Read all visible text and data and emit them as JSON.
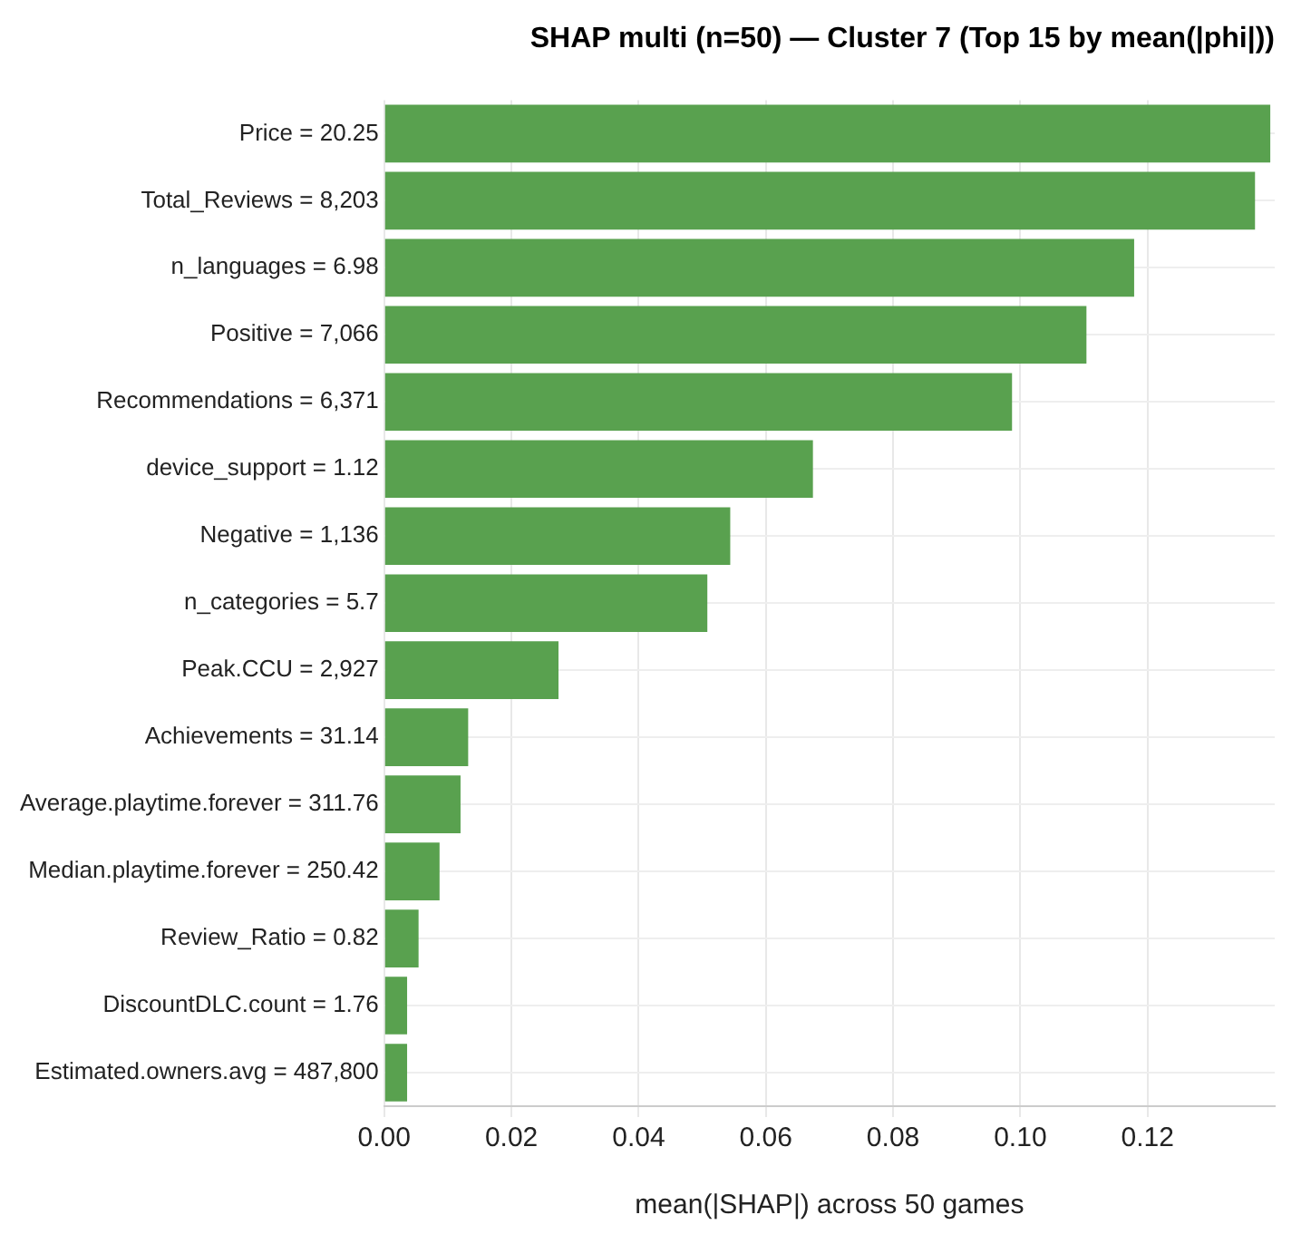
{
  "chart_data": {
    "type": "bar",
    "orientation": "horizontal",
    "title": "SHAP multi (n=50) — Cluster 7 (Top 15 by mean(|phi|))",
    "xlabel": "mean(|SHAP|) across 50 games",
    "categories": [
      "Price = 20.25",
      "Total_Reviews = 8,203",
      "n_languages = 6.98",
      "Positive = 7,066",
      "Recommendations = 6,371",
      "device_support = 1.12",
      "Negative = 1,136",
      "n_categories = 5.7",
      "Peak.CCU = 2,927",
      "Achievements = 31.14",
      "Average.playtime.forever = 311.76",
      "Median.playtime.forever = 250.42",
      "Review_Ratio = 0.82",
      "DiscountDLC.count = 1.76",
      "Estimated.owners.avg = 487,800"
    ],
    "values": [
      0.1393,
      0.1369,
      0.1179,
      0.1104,
      0.0987,
      0.0674,
      0.0544,
      0.0508,
      0.0274,
      0.0132,
      0.012,
      0.0087,
      0.0054,
      0.0036,
      0.0036
    ],
    "color": "#59a14f",
    "xlim": [
      0,
      0.14
    ],
    "xticks": [
      {
        "value": 0,
        "label": "0.00"
      },
      {
        "value": 0.02,
        "label": "0.02"
      },
      {
        "value": 0.04,
        "label": "0.04"
      },
      {
        "value": 0.06,
        "label": "0.06"
      },
      {
        "value": 0.08,
        "label": "0.08"
      },
      {
        "value": 0.1,
        "label": "0.10"
      },
      {
        "value": 0.12,
        "label": "0.12"
      }
    ],
    "grid": true,
    "legend": false
  }
}
